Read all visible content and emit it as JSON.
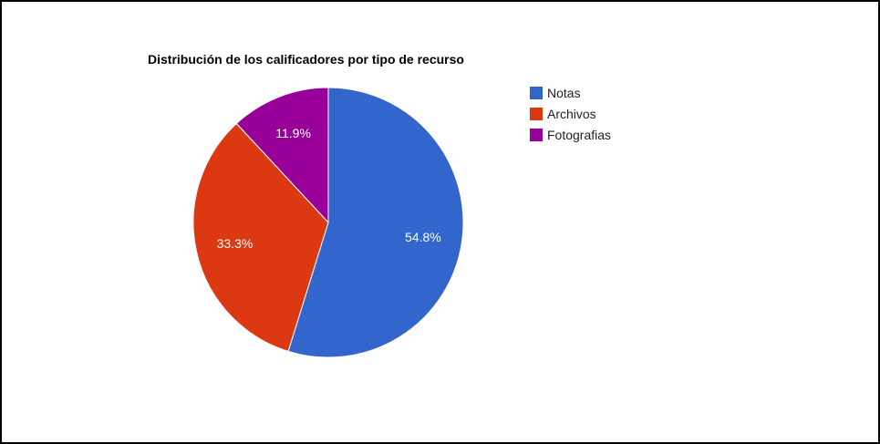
{
  "chart_data": {
    "type": "pie",
    "title": "Distribución de los calificadores por tipo de recurso",
    "legend_position": "right",
    "slices": [
      {
        "name": "Notas",
        "value": 54.8,
        "label": "54.8%",
        "color": "#3366cc"
      },
      {
        "name": "Archivos",
        "value": 33.3,
        "label": "33.3%",
        "color": "#dc3912"
      },
      {
        "name": "Fotografias",
        "value": 11.9,
        "label": "11.9%",
        "color": "#990099"
      }
    ]
  }
}
